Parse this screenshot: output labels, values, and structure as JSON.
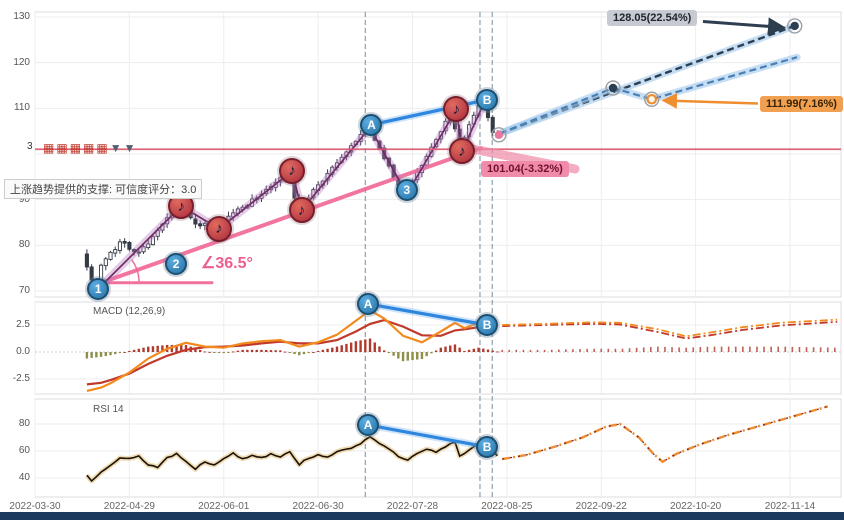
{
  "axes": {
    "x_ticks": [
      {
        "t": 0,
        "label": "2022-03-30"
      },
      {
        "t": 20,
        "label": "2022-04-29"
      },
      {
        "t": 40,
        "label": "2022-06-01"
      },
      {
        "t": 60,
        "label": "2022-06-30"
      },
      {
        "t": 80,
        "label": "2022-07-28"
      },
      {
        "t": 100,
        "label": "2022-08-25"
      },
      {
        "t": 120,
        "label": "2022-09-22"
      },
      {
        "t": 140,
        "label": "2022-10-20"
      },
      {
        "t": 160,
        "label": "2022-11-14"
      }
    ],
    "price_ticks": [
      {
        "v": 130,
        "label": "130"
      },
      {
        "v": 120,
        "label": "120"
      },
      {
        "v": 110,
        "label": "110"
      },
      {
        "v": 100,
        "label": ""
      },
      {
        "v": 90,
        "label": "90"
      },
      {
        "v": 80,
        "label": "80"
      },
      {
        "v": 70,
        "label": "70"
      }
    ],
    "macd_ticks": [
      {
        "v": 2.5,
        "label": "2.5"
      },
      {
        "v": 0,
        "label": "0.0"
      },
      {
        "v": -2.5,
        "label": "-2.5"
      }
    ],
    "rsi_ticks": [
      {
        "v": 80,
        "label": "80"
      },
      {
        "v": 60,
        "label": "60"
      },
      {
        "v": 40,
        "label": "40"
      }
    ]
  },
  "signal_icons": {
    "items": [
      {
        "glyph": "▦",
        "color": "#c0392b"
      },
      {
        "glyph": "▦",
        "color": "#c0392b"
      },
      {
        "glyph": "▦",
        "color": "#c0392b"
      },
      {
        "glyph": "▦",
        "color": "#c0392b"
      },
      {
        "glyph": "▦",
        "color": "#c0392b"
      },
      {
        "glyph": "▼",
        "color": "#55606e"
      },
      {
        "glyph": "▼",
        "color": "#55606e"
      }
    ]
  },
  "chart_data": {
    "type": "candlestick",
    "title": "",
    "price_range": [
      70,
      130
    ],
    "macd_range": [
      -4.5,
      5
    ],
    "rsi_range": [
      30,
      100
    ],
    "event_lines_t": [
      70,
      94.3,
      96.9
    ],
    "price": {
      "support_line": 101.04,
      "note_glyph": "♪",
      "pivots": [
        [
          11,
          78.5
        ],
        [
          13.5,
          70.6
        ],
        [
          15,
          76
        ],
        [
          19,
          80.5
        ],
        [
          23,
          78.5
        ],
        [
          27,
          83
        ],
        [
          31,
          88.6
        ],
        [
          35,
          85
        ],
        [
          39,
          83.6
        ],
        [
          44,
          88
        ],
        [
          48,
          90.5
        ],
        [
          54.5,
          96.3
        ],
        [
          56.5,
          87.7
        ],
        [
          60,
          92
        ],
        [
          65,
          98
        ],
        [
          71,
          105.8
        ],
        [
          75,
          99
        ],
        [
          78.8,
          91.2
        ],
        [
          83,
          98
        ],
        [
          89.3,
          109.8
        ],
        [
          90.5,
          100.6
        ],
        [
          95.5,
          112
        ],
        [
          98,
          104.5
        ]
      ],
      "zigzag": [
        [
          13.5,
          70.6
        ],
        [
          31,
          88.6
        ],
        [
          39,
          83.6
        ],
        [
          54.5,
          96.3
        ],
        [
          56.5,
          87.7
        ],
        [
          71,
          105.8
        ],
        [
          78.8,
          91.2
        ],
        [
          89.3,
          109.8
        ],
        [
          90.5,
          100.6
        ],
        [
          95.5,
          112
        ]
      ],
      "note_pivots": [
        [
          31,
          88.6
        ],
        [
          39,
          83.6
        ],
        [
          54.5,
          96.3
        ],
        [
          56.5,
          87.7
        ],
        [
          89.3,
          109.8
        ],
        [
          90.5,
          100.6
        ]
      ],
      "trendline": [
        [
          14,
          71.8
        ],
        [
          94.5,
          101.3
        ]
      ],
      "angle_baseline": [
        [
          14,
          71.8
        ],
        [
          37.5,
          71.8
        ]
      ],
      "projections": {
        "navy": [
          [
            98.5,
            104.5
          ],
          [
            161,
            128.05
          ]
        ],
        "blue": [
          [
            98.5,
            104.5
          ],
          [
            122.5,
            114.45
          ],
          [
            130.7,
            111.99
          ],
          [
            161.5,
            121.2
          ]
        ],
        "current_point": [
          98.3,
          104.2
        ],
        "mid_marker": [
          122.5,
          114.45
        ],
        "orange_marker": [
          130.7,
          111.99
        ],
        "navy_end_marker": [
          161,
          128.05
        ]
      }
    },
    "macd": {
      "label": "MACD (12,26,9)",
      "macd": [
        [
          11,
          -3.6
        ],
        [
          14,
          -3.3
        ],
        [
          16,
          -2.9
        ],
        [
          20,
          -1.9
        ],
        [
          24,
          -0.6
        ],
        [
          28,
          0.3
        ],
        [
          32,
          0.85
        ],
        [
          36,
          0.5
        ],
        [
          40,
          0.4
        ],
        [
          44,
          0.8
        ],
        [
          48,
          1.0
        ],
        [
          52,
          1.1
        ],
        [
          56,
          0.5
        ],
        [
          60,
          0.9
        ],
        [
          64,
          1.6
        ],
        [
          68,
          2.9
        ],
        [
          71,
          3.85
        ],
        [
          74,
          3.1
        ],
        [
          78,
          1.5
        ],
        [
          82,
          0.9
        ],
        [
          86,
          1.9
        ],
        [
          89,
          2.7
        ],
        [
          91,
          2.2
        ],
        [
          94,
          2.7
        ],
        [
          98,
          2.5
        ]
      ],
      "signal": [
        [
          11,
          -3.0
        ],
        [
          14,
          -2.85
        ],
        [
          16,
          -2.6
        ],
        [
          20,
          -2.0
        ],
        [
          24,
          -1.1
        ],
        [
          28,
          -0.35
        ],
        [
          32,
          0.2
        ],
        [
          36,
          0.45
        ],
        [
          40,
          0.5
        ],
        [
          44,
          0.6
        ],
        [
          48,
          0.8
        ],
        [
          52,
          0.95
        ],
        [
          56,
          0.8
        ],
        [
          60,
          0.8
        ],
        [
          64,
          1.1
        ],
        [
          68,
          1.9
        ],
        [
          71,
          2.6
        ],
        [
          74,
          2.95
        ],
        [
          78,
          2.35
        ],
        [
          82,
          1.55
        ],
        [
          86,
          1.5
        ],
        [
          89,
          2.0
        ],
        [
          91,
          2.1
        ],
        [
          94,
          2.3
        ],
        [
          98,
          2.45
        ]
      ],
      "proj_macd": [
        [
          99,
          2.5
        ],
        [
          108,
          2.6
        ],
        [
          118,
          2.75
        ],
        [
          124,
          2.7
        ],
        [
          132,
          2.1
        ],
        [
          138,
          1.45
        ],
        [
          143,
          1.8
        ],
        [
          150,
          2.3
        ],
        [
          158,
          2.7
        ],
        [
          170,
          3.0
        ]
      ],
      "proj_signal": [
        [
          99,
          2.4
        ],
        [
          108,
          2.5
        ],
        [
          118,
          2.6
        ],
        [
          124,
          2.55
        ],
        [
          132,
          1.85
        ],
        [
          138,
          1.25
        ],
        [
          143,
          1.55
        ],
        [
          150,
          2.05
        ],
        [
          158,
          2.45
        ],
        [
          170,
          2.8
        ]
      ]
    },
    "rsi": {
      "label": "RSI 14",
      "series": [
        [
          11,
          42
        ],
        [
          12,
          38
        ],
        [
          14,
          45
        ],
        [
          16,
          50
        ],
        [
          18,
          55
        ],
        [
          20,
          54
        ],
        [
          22,
          56
        ],
        [
          24,
          50
        ],
        [
          26,
          48
        ],
        [
          28,
          55
        ],
        [
          30,
          58
        ],
        [
          32,
          52
        ],
        [
          34,
          47
        ],
        [
          36,
          52
        ],
        [
          38,
          50
        ],
        [
          40,
          55
        ],
        [
          42,
          58
        ],
        [
          44,
          54
        ],
        [
          46,
          57
        ],
        [
          48,
          55
        ],
        [
          50,
          58
        ],
        [
          52,
          56
        ],
        [
          54,
          60
        ],
        [
          56,
          50
        ],
        [
          58,
          55
        ],
        [
          60,
          57
        ],
        [
          62,
          56
        ],
        [
          64,
          59
        ],
        [
          66,
          61
        ],
        [
          68,
          64
        ],
        [
          70,
          68
        ],
        [
          71,
          71
        ],
        [
          73,
          66
        ],
        [
          75,
          61
        ],
        [
          77,
          56
        ],
        [
          79,
          53
        ],
        [
          81,
          58
        ],
        [
          83,
          61
        ],
        [
          85,
          59
        ],
        [
          87,
          63
        ],
        [
          89,
          67
        ],
        [
          90,
          56
        ],
        [
          92,
          61
        ],
        [
          94,
          65
        ],
        [
          96,
          63
        ],
        [
          98,
          57
        ]
      ],
      "proj": [
        [
          99,
          54
        ],
        [
          104,
          57
        ],
        [
          110,
          63
        ],
        [
          116,
          70
        ],
        [
          121,
          78
        ],
        [
          124,
          80
        ],
        [
          128,
          70
        ],
        [
          131,
          58
        ],
        [
          133,
          52
        ],
        [
          136,
          58
        ],
        [
          141,
          65
        ],
        [
          147,
          72
        ],
        [
          153,
          78
        ],
        [
          159,
          84
        ],
        [
          165,
          90
        ],
        [
          168,
          93
        ]
      ]
    },
    "markers": [
      {
        "panel": "price",
        "label": "1",
        "t": 13.4,
        "v": 70.5
      },
      {
        "panel": "price",
        "label": "2",
        "t": 29.9,
        "v": 75.9
      },
      {
        "panel": "price",
        "label": "3",
        "t": 78.8,
        "v": 92.2
      },
      {
        "panel": "price",
        "label": "A",
        "t": 71.3,
        "v": 106.4
      },
      {
        "panel": "price",
        "label": "B",
        "t": 95.8,
        "v": 111.9
      },
      {
        "panel": "macd",
        "label": "A",
        "t": 70.6,
        "v": 4.45
      },
      {
        "panel": "macd",
        "label": "B",
        "t": 95.8,
        "v": 2.5
      },
      {
        "panel": "rsi",
        "label": "A",
        "t": 70.6,
        "v": 79.3
      },
      {
        "panel": "rsi",
        "label": "B",
        "t": 95.8,
        "v": 63
      }
    ],
    "annotations": {
      "upper_target": "128.05(22.54%)",
      "mid_target": "111.99(7.16%)",
      "lower_target": "101.04(-3.32%)",
      "support_note": "上涨趋势提供的支撑: 可信度评分：3.0",
      "angle": "∠36.5°",
      "count": "3"
    },
    "colors": {
      "candle": "#353b45",
      "zigzag": "#6d2f5f",
      "zigzag_glow": "rgba(186,124,200,0.38)",
      "trend": "#f06292",
      "support": "#d9556b",
      "navy": "#2c3e50",
      "steel": "#4a7fb5",
      "proj_glow": "rgba(160,200,235,0.6)",
      "blue_link": "#2e86de",
      "macd_line": "#f28a1e",
      "signal_line": "#c0392b",
      "hist_pos": "#b03a2e",
      "hist_neg": "#8d8f4a",
      "rsi_line": "#1a1208",
      "rsi_glow": "#f0dcb4",
      "orange": "#ef8e2e",
      "pink_band": "#ef8aa6"
    }
  }
}
